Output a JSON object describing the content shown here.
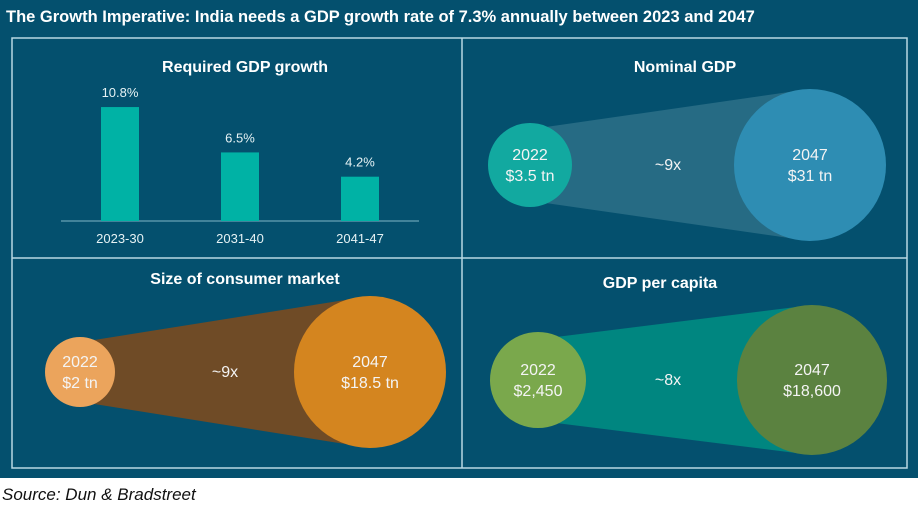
{
  "title": "The Growth Imperative: India needs a GDP growth rate of 7.3% annually between 2023 and 2047",
  "source": "Source: Dun & Bradstreet",
  "chart_data": [
    {
      "type": "bar",
      "title": "Required GDP growth",
      "categories": [
        "2023-30",
        "2031-40",
        "2041-47"
      ],
      "values": [
        10.8,
        6.5,
        4.2
      ],
      "data_labels": [
        "10.8%",
        "6.5%",
        "4.2%"
      ],
      "unit": "%",
      "color": "#00b2a5"
    },
    {
      "type": "bubble-comparison",
      "title": "Nominal GDP",
      "start": {
        "year": "2022",
        "value": "$3.5 tn"
      },
      "end": {
        "year": "2047",
        "value": "$31 tn"
      },
      "multiplier": "~9x",
      "colors": {
        "start": "#12a9a0",
        "end": "#2e8db3",
        "cone": "#2a6e86"
      }
    },
    {
      "type": "bubble-comparison",
      "title": "Size of consumer market",
      "start": {
        "year": "2022",
        "value": "$2 tn"
      },
      "end": {
        "year": "2047",
        "value": "$18.5 tn"
      },
      "multiplier": "~9x",
      "colors": {
        "start": "#eba45c",
        "end": "#d4851f",
        "cone": "#7b4a1e"
      }
    },
    {
      "type": "bubble-comparison",
      "title": "GDP per capita",
      "start": {
        "year": "2022",
        "value": "$2,450"
      },
      "end": {
        "year": "2047",
        "value": "$18,600"
      },
      "multiplier": "~8x",
      "colors": {
        "start": "#7aa84c",
        "end": "#5b8240",
        "cone": "#008c82"
      }
    }
  ]
}
